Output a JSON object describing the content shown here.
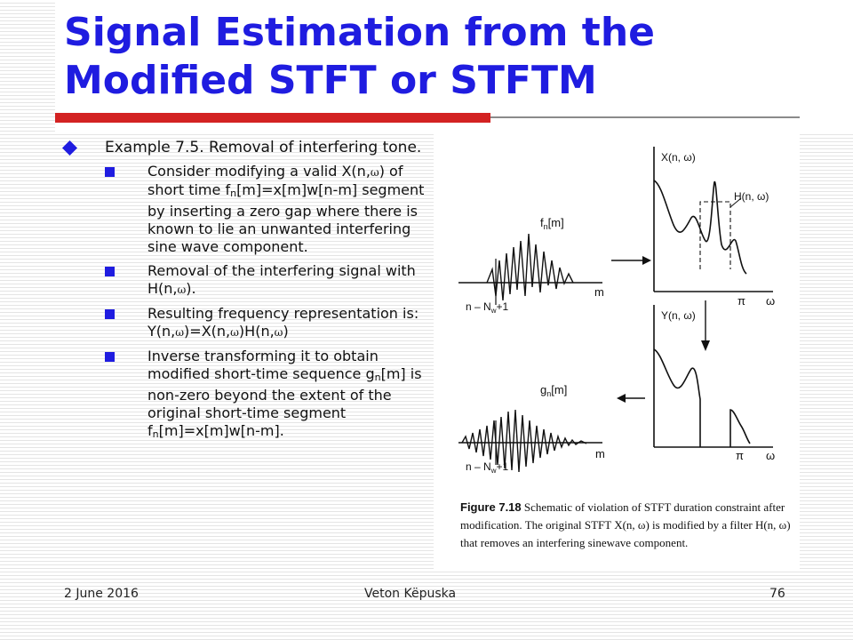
{
  "title": "Signal Estimation from the Modified STFT or STFTM",
  "colors": {
    "title": "#1f1ce0",
    "bullet": "#1f1ce0",
    "rule": "#d32222"
  },
  "example": {
    "text": "Example 7.5. Removal of interfering tone."
  },
  "bullets": {
    "b1": {
      "pre": "Consider modifying a valid X(n,",
      "omega": "ω",
      "mid1": ") of short time f",
      "sub": "n",
      "post": "[m]=x[m]w[n-m] segment by inserting a zero gap where there is known to lie an unwanted interfering sine wave component."
    },
    "b2": {
      "pre": "Removal of the interfering signal with H(n,",
      "omega": "ω",
      "post": ")."
    },
    "b3": {
      "pre": "Resulting frequency representation is: Y(n,",
      "omega": "ω",
      "mid1": ")=X(n,",
      "mid2": ")H(n,",
      "post": ")"
    },
    "b4": {
      "pre": "Inverse transforming it to obtain modified short-time sequence g",
      "sub": "n",
      "mid": "[m] is non-zero beyond the extent of the original short-time segment f",
      "sub2": "n",
      "post": "[m]=x[m]w[n-m]."
    }
  },
  "figure": {
    "label_f": "f",
    "label_f_sub": "n",
    "label_f_post": "[m]",
    "label_g": "g",
    "label_g_sub": "n",
    "label_g_post": "[m]",
    "label_m": "m",
    "label_nw": "n – N",
    "label_nw_sub": "w",
    "label_nw_post": "+1",
    "label_X": "X(n, ω)",
    "label_H": "H(n, ω)",
    "label_Y": "Y(n, ω)",
    "label_pi": "π",
    "label_omega": "ω",
    "caption_bold": "Figure 7.18",
    "caption_text": "Schematic of violation of STFT duration constraint after modification. The original STFT X(n, ω) is modified by a filter H(n, ω) that removes an interfering sinewave component."
  },
  "footer": {
    "date": "2 June 2016",
    "author": "Veton Këpuska",
    "page": "76"
  }
}
